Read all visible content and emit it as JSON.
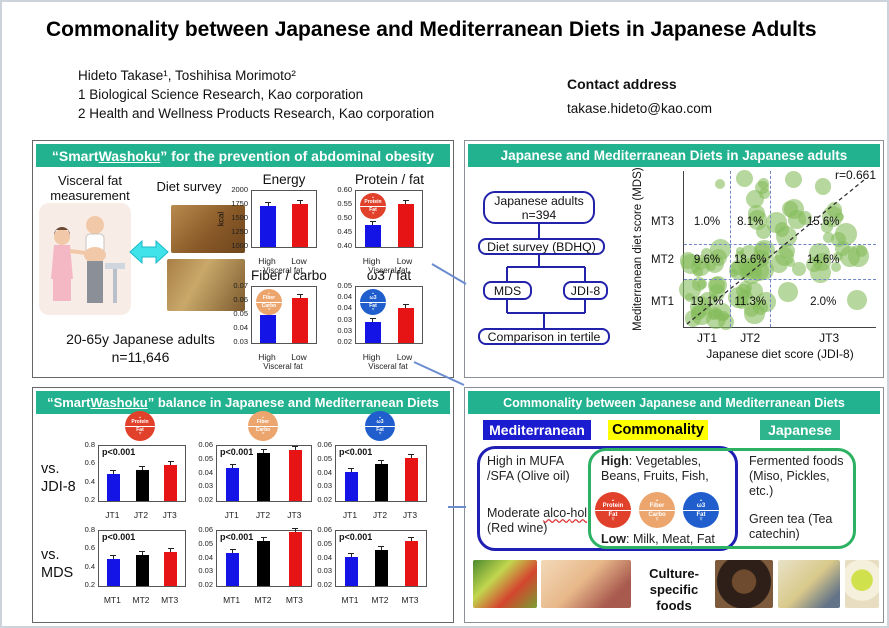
{
  "page": {
    "title": "Commonality between Japanese and Mediterranean Diets in Japanese Adults",
    "authors": "Hideto Takase¹, Toshihisa Morimoto²",
    "affil1": "1 Biological Science Research, Kao corporation",
    "affil2": "2 Health and Wellness Products Research, Kao corporation",
    "contact_label": "Contact address",
    "contact_email": "takase.hideto@kao.com"
  },
  "colors": {
    "header_teal": "#23b28f",
    "bar_blue": "#1414e6",
    "bar_red": "#e61414",
    "bar_black": "#000000",
    "flow_navy": "#2222aa",
    "venn_blue": "#1f1fb4",
    "venn_green": "#2db264",
    "bubble_green": "#8abf5e",
    "med_header_bg": "#1b1bd0",
    "common_header_bg": "#ffff00",
    "jap_header_bg": "#2fb58e"
  },
  "icons": {
    "protein_fat": {
      "up": "▲",
      "top": "Protein",
      "bottom": "Fat",
      "down": "▽",
      "color": "#e1402a"
    },
    "fiber_carbo": {
      "up": "▲",
      "top": "Fiber",
      "bottom": "Carbo",
      "down": "▽",
      "color": "#eda56e"
    },
    "omega_fat": {
      "up": "▲",
      "top": "ω3",
      "bottom": "Fat",
      "down": "▽",
      "color": "#1f5ecc"
    }
  },
  "panel1": {
    "header": {
      "pre": "“Smart ",
      "underline": "Washoku",
      "post": "” for the prevention of abdominal obesity"
    },
    "visceral_label": "Visceral fat measurement",
    "diet_label": "Diet survey",
    "cohort_line1": "20-65y Japanese adults",
    "cohort_line2": "n=11,646",
    "charts": {
      "energy": {
        "title": "Energy",
        "ylabel": "kcal",
        "ymin": 1000,
        "ymax": 2000,
        "yticks": [
          "2000",
          "1750",
          "1500",
          "1250",
          "1000"
        ],
        "categories": [
          "High",
          "Low"
        ],
        "values": [
          1730,
          1760
        ],
        "colors": [
          "#1414e6",
          "#e61414"
        ],
        "xsub": "Visceral fat"
      },
      "protein_fat": {
        "title": "Protein / fat",
        "ymin": 0.4,
        "ymax": 0.6,
        "yticks": [
          "0.60",
          "0.55",
          "0.50",
          "0.45",
          "0.40"
        ],
        "categories": [
          "High",
          "Low"
        ],
        "values": [
          0.48,
          0.555
        ],
        "colors": [
          "#1414e6",
          "#e61414"
        ],
        "xsub": "Visceral fat",
        "icon": "protein_fat"
      },
      "fiber_carbo": {
        "title": "Fiber / carbo",
        "ymin": 0.03,
        "ymax": 0.07,
        "yticks": [
          "0.07",
          "0.06",
          "0.05",
          "0.04",
          "0.03"
        ],
        "categories": [
          "High",
          "Low"
        ],
        "values": [
          0.05,
          0.062
        ],
        "colors": [
          "#1414e6",
          "#e61414"
        ],
        "xsub": "Visceral fat",
        "icon": "fiber_carbo"
      },
      "omega_fat": {
        "title": "ω3 / fat",
        "ymin": 0.02,
        "ymax": 0.05,
        "yticks": [
          "0.05",
          "0.04",
          "0.04",
          "0.03",
          "0.03",
          "0.02"
        ],
        "categories": [
          "High",
          "Low"
        ],
        "values": [
          0.031,
          0.039
        ],
        "colors": [
          "#1414e6",
          "#e61414"
        ],
        "xsub": "Visceral fat",
        "icon": "omega_fat"
      }
    }
  },
  "panel2": {
    "header": "Japanese and Mediterranean Diets in Japanese adults",
    "flow": {
      "box1a": "Japanese adults",
      "box1b": "n=394",
      "box2": "Diet survey (BDHQ)",
      "box3": "MDS",
      "box4": "JDI-8",
      "box5": "Comparison in tertile"
    },
    "scatter": {
      "type": "scatter",
      "r_label": "r=0.661",
      "xlabel": "Japanese diet score (JDI-8)",
      "ylabel": "Mediterranean diet score (MDS)",
      "row_labels": [
        "MT3",
        "MT2",
        "MT1"
      ],
      "col_labels": [
        "JT1",
        "JT2",
        "JT3"
      ],
      "cells": [
        [
          "1.0%",
          "8.1%",
          "15.6%"
        ],
        [
          "9.6%",
          "18.6%",
          "14.6%"
        ],
        [
          "19.1%",
          "11.3%",
          "2.0%"
        ]
      ]
    }
  },
  "panel3": {
    "header": {
      "pre": "“Smart ",
      "underline": "Washoku",
      "post": "” balance in Japanese and Mediterranean Diets"
    },
    "row1_label_a": "vs.",
    "row1_label_b": "JDI-8",
    "row2_label_a": "vs.",
    "row2_label_b": "MDS",
    "charts": {
      "jdi_protein": {
        "ymin": 0.2,
        "ymax": 0.8,
        "yticks": [
          "0.8",
          "0.6",
          "0.4",
          "0.2"
        ],
        "categories": [
          "JT1",
          "JT2",
          "JT3"
        ],
        "values": [
          0.49,
          0.54,
          0.59
        ],
        "colors": [
          "#1414e6",
          "#000000",
          "#e61414"
        ],
        "p": "p<0.001"
      },
      "jdi_fiber": {
        "ymin": 0.02,
        "ymax": 0.06,
        "yticks": [
          "0.06",
          "0.05",
          "0.04",
          "0.03",
          "0.02"
        ],
        "categories": [
          "JT1",
          "JT2",
          "JT3"
        ],
        "values": [
          0.044,
          0.055,
          0.057
        ],
        "colors": [
          "#1414e6",
          "#000000",
          "#e61414"
        ],
        "p": "p<0.001"
      },
      "jdi_omega": {
        "ymin": 0.02,
        "ymax": 0.06,
        "yticks": [
          "0.06",
          "0.05",
          "0.04",
          "0.03",
          "0.02"
        ],
        "categories": [
          "JT1",
          "JT2",
          "JT3"
        ],
        "values": [
          0.041,
          0.047,
          0.051
        ],
        "colors": [
          "#1414e6",
          "#000000",
          "#e61414"
        ],
        "p": "p<0.001"
      },
      "mds_protein": {
        "ymin": 0.2,
        "ymax": 0.8,
        "yticks": [
          "0.8",
          "0.6",
          "0.4",
          "0.2"
        ],
        "categories": [
          "MT1",
          "MT2",
          "MT3"
        ],
        "values": [
          0.5,
          0.54,
          0.575
        ],
        "colors": [
          "#1414e6",
          "#000000",
          "#e61414"
        ],
        "p": "p<0.001"
      },
      "mds_fiber": {
        "ymin": 0.02,
        "ymax": 0.06,
        "yticks": [
          "0.06",
          "0.05",
          "0.04",
          "0.03",
          "0.02"
        ],
        "categories": [
          "MT1",
          "MT2",
          "MT3"
        ],
        "values": [
          0.044,
          0.053,
          0.059
        ],
        "colors": [
          "#1414e6",
          "#000000",
          "#e61414"
        ],
        "p": "p<0.001"
      },
      "mds_omega": {
        "ymin": 0.02,
        "ymax": 0.06,
        "yticks": [
          "0.06",
          "0.05",
          "0.04",
          "0.03",
          "0.02"
        ],
        "categories": [
          "MT1",
          "MT2",
          "MT3"
        ],
        "values": [
          0.041,
          0.046,
          0.053
        ],
        "colors": [
          "#1414e6",
          "#000000",
          "#e61414"
        ],
        "p": "p<0.001"
      }
    }
  },
  "panel4": {
    "header": "Commonality between Japanese and Mediterranean Diets",
    "med": {
      "header": "Mediterranean",
      "item1": "High in MUFA /SFA (Olive oil)",
      "item2_pre": "Moderate ",
      "item2_w1": "alco-",
      "item2_w2": "hol",
      "item2_post": " (Red wine)"
    },
    "common": {
      "header": "Commonality",
      "high_bold": "High",
      "high_rest": ": Vegetables, Beans, Fruits, Fish,",
      "low_bold": "Low",
      "low_rest": ": Milk, Meat, Fat"
    },
    "jap": {
      "header": "Japanese",
      "item1": "Fermented foods (Miso, Pickles, etc.)",
      "item2": "Green tea (Tea catechin)"
    },
    "culture_label": "Culture-specific foods"
  }
}
